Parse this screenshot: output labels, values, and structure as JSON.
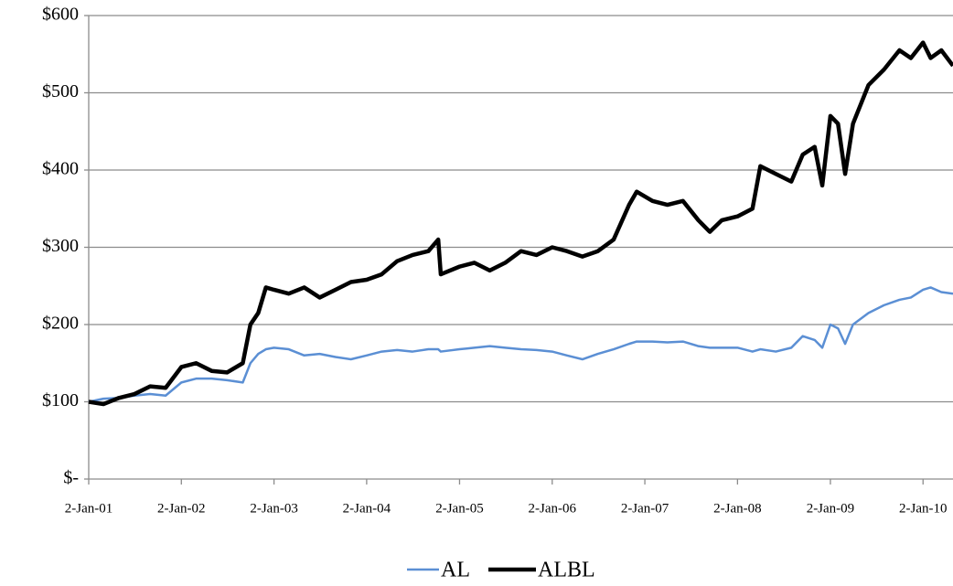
{
  "chart_data": {
    "type": "line",
    "x": [
      "2001-01-02",
      "2001-03-01",
      "2001-05-01",
      "2001-07-01",
      "2001-09-01",
      "2001-11-01",
      "2002-01-02",
      "2002-03-01",
      "2002-05-01",
      "2002-07-01",
      "2002-09-01",
      "2002-10-01",
      "2002-11-01",
      "2002-12-01",
      "2003-01-02",
      "2003-03-01",
      "2003-05-01",
      "2003-07-01",
      "2003-09-01",
      "2003-11-01",
      "2004-01-02",
      "2004-03-01",
      "2004-05-01",
      "2004-07-01",
      "2004-09-01",
      "2004-10-10",
      "2004-10-20",
      "2005-01-02",
      "2005-03-01",
      "2005-05-01",
      "2005-07-01",
      "2005-09-01",
      "2005-11-01",
      "2006-01-02",
      "2006-03-01",
      "2006-05-01",
      "2006-07-01",
      "2006-09-01",
      "2006-11-01",
      "2006-12-01",
      "2007-02-01",
      "2007-04-01",
      "2007-06-01",
      "2007-08-01",
      "2007-09-15",
      "2007-11-01",
      "2008-01-02",
      "2008-03-01",
      "2008-04-01",
      "2008-06-01",
      "2008-08-01",
      "2008-09-15",
      "2008-11-01",
      "2008-12-01",
      "2009-01-02",
      "2009-02-01",
      "2009-03-01",
      "2009-04-01",
      "2009-06-01",
      "2009-08-01",
      "2009-10-01",
      "2009-11-15",
      "2010-01-02",
      "2010-02-01",
      "2010-03-15",
      "2010-04-30"
    ],
    "series": [
      {
        "name": "AL",
        "color": "#5b8fd4",
        "values": [
          100,
          104,
          105,
          108,
          110,
          108,
          125,
          130,
          130,
          128,
          125,
          150,
          162,
          168,
          170,
          168,
          160,
          162,
          158,
          155,
          160,
          165,
          167,
          165,
          168,
          168,
          165,
          168,
          170,
          172,
          170,
          168,
          167,
          165,
          160,
          155,
          162,
          168,
          175,
          178,
          178,
          177,
          178,
          172,
          170,
          170,
          170,
          165,
          168,
          165,
          170,
          185,
          180,
          170,
          200,
          195,
          175,
          200,
          215,
          225,
          232,
          235,
          245,
          248,
          242,
          240
        ]
      },
      {
        "name": "ALBL",
        "color": "#000000",
        "values": [
          100,
          97,
          105,
          110,
          120,
          118,
          145,
          150,
          140,
          138,
          150,
          200,
          215,
          248,
          245,
          240,
          248,
          235,
          245,
          255,
          258,
          265,
          282,
          290,
          295,
          310,
          265,
          275,
          280,
          270,
          280,
          295,
          290,
          300,
          295,
          288,
          295,
          310,
          355,
          372,
          360,
          355,
          360,
          335,
          320,
          335,
          340,
          350,
          405,
          395,
          385,
          420,
          430,
          380,
          470,
          460,
          395,
          460,
          510,
          530,
          555,
          545,
          565,
          545,
          555,
          535
        ]
      }
    ],
    "xlim": [
      "2001-01-02",
      "2010-04-30"
    ],
    "xticks": [
      {
        "value": "2001-01-02",
        "label": "2-Jan-01"
      },
      {
        "value": "2002-01-02",
        "label": "2-Jan-02"
      },
      {
        "value": "2003-01-02",
        "label": "2-Jan-03"
      },
      {
        "value": "2004-01-02",
        "label": "2-Jan-04"
      },
      {
        "value": "2005-01-02",
        "label": "2-Jan-05"
      },
      {
        "value": "2006-01-02",
        "label": "2-Jan-06"
      },
      {
        "value": "2007-01-02",
        "label": "2-Jan-07"
      },
      {
        "value": "2008-01-02",
        "label": "2-Jan-08"
      },
      {
        "value": "2009-01-02",
        "label": "2-Jan-09"
      },
      {
        "value": "2010-01-02",
        "label": "2-Jan-10"
      }
    ],
    "ylim": [
      0,
      600
    ],
    "yticks": [
      {
        "value": 0,
        "label": "$-"
      },
      {
        "value": 100,
        "label": "$100"
      },
      {
        "value": 200,
        "label": "$200"
      },
      {
        "value": 300,
        "label": "$300"
      },
      {
        "value": 400,
        "label": "$400"
      },
      {
        "value": 500,
        "label": "$500"
      },
      {
        "value": 600,
        "label": "$600"
      }
    ],
    "grid": true,
    "legend": "bottom"
  }
}
